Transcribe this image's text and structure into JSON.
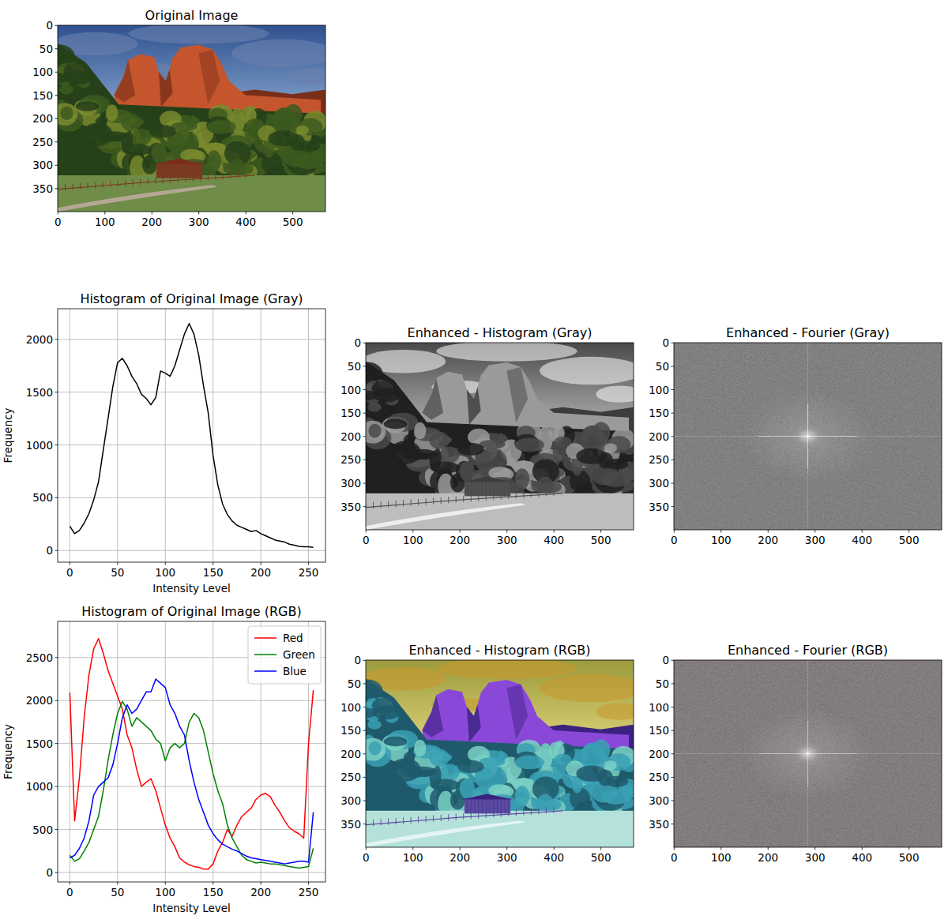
{
  "chart_data": [
    {
      "type": "image",
      "title": "Original Image",
      "xlim": [
        -0.5,
        569.5
      ],
      "ylim": [
        399.5,
        -0.5
      ],
      "xticks": [
        0,
        100,
        200,
        300,
        400,
        500
      ],
      "yticks": [
        0,
        50,
        100,
        150,
        200,
        250,
        300,
        350
      ]
    },
    {
      "type": "line",
      "title": "Histogram of Original Image (Gray)",
      "x_label": "Intensity Level",
      "y_label": "Frequency",
      "grid": true,
      "color": "black",
      "xlim": [
        -12.75,
        267.75
      ],
      "ylim": [
        -110,
        2290
      ],
      "xticks": [
        0,
        50,
        100,
        150,
        200,
        250
      ],
      "yticks": [
        0,
        500,
        1000,
        1500,
        2000
      ],
      "x": [
        0,
        5,
        10,
        15,
        20,
        25,
        30,
        35,
        40,
        45,
        50,
        55,
        60,
        65,
        70,
        75,
        80,
        85,
        90,
        95,
        100,
        105,
        110,
        115,
        120,
        125,
        130,
        135,
        140,
        145,
        150,
        155,
        160,
        165,
        170,
        175,
        180,
        185,
        190,
        195,
        200,
        205,
        210,
        215,
        220,
        225,
        230,
        235,
        240,
        245,
        250,
        255
      ],
      "values": [
        230,
        160,
        190,
        260,
        350,
        480,
        650,
        950,
        1250,
        1550,
        1780,
        1820,
        1750,
        1650,
        1580,
        1480,
        1440,
        1380,
        1450,
        1700,
        1680,
        1650,
        1750,
        1900,
        2050,
        2150,
        2050,
        1850,
        1560,
        1300,
        900,
        620,
        440,
        340,
        280,
        240,
        220,
        200,
        180,
        190,
        160,
        140,
        120,
        100,
        90,
        80,
        60,
        50,
        40,
        35,
        35,
        30
      ]
    },
    {
      "type": "image",
      "title": "Enhanced - Histogram (Gray)",
      "xlim": [
        -0.5,
        569.5
      ],
      "ylim": [
        399.5,
        -0.5
      ],
      "xticks": [
        0,
        100,
        200,
        300,
        400,
        500
      ],
      "yticks": [
        0,
        50,
        100,
        150,
        200,
        250,
        300,
        350
      ]
    },
    {
      "type": "image",
      "title": "Enhanced - Fourier (Gray)",
      "xlim": [
        -0.5,
        569.5
      ],
      "ylim": [
        399.5,
        -0.5
      ],
      "xticks": [
        0,
        100,
        200,
        300,
        400,
        500
      ],
      "yticks": [
        0,
        50,
        100,
        150,
        200,
        250,
        300,
        350
      ]
    },
    {
      "type": "line",
      "title": "Histogram of Original Image (RGB)",
      "x_label": "Intensity Level",
      "y_label": "Frequency",
      "grid": true,
      "legend": "upper right",
      "xlim": [
        -12.75,
        267.75
      ],
      "ylim": [
        -110,
        2920
      ],
      "xticks": [
        0,
        50,
        100,
        150,
        200,
        250
      ],
      "yticks": [
        0,
        500,
        1000,
        1500,
        2000,
        2500
      ],
      "x": [
        0,
        5,
        10,
        15,
        20,
        25,
        30,
        35,
        40,
        45,
        50,
        55,
        60,
        65,
        70,
        75,
        80,
        85,
        90,
        95,
        100,
        105,
        110,
        115,
        120,
        125,
        130,
        135,
        140,
        145,
        150,
        155,
        160,
        165,
        170,
        175,
        180,
        185,
        190,
        195,
        200,
        205,
        210,
        215,
        220,
        225,
        230,
        235,
        240,
        245,
        250,
        255
      ],
      "series": [
        {
          "name": "Red",
          "color": "red",
          "values": [
            2090,
            600,
            1100,
            1800,
            2300,
            2600,
            2720,
            2550,
            2350,
            2200,
            2050,
            1900,
            1600,
            1450,
            1200,
            1000,
            1050,
            1090,
            950,
            750,
            550,
            400,
            300,
            170,
            120,
            90,
            70,
            60,
            40,
            40,
            100,
            250,
            350,
            500,
            420,
            550,
            650,
            700,
            750,
            850,
            900,
            920,
            880,
            780,
            700,
            600,
            520,
            480,
            450,
            400,
            1500,
            2120
          ]
        },
        {
          "name": "Green",
          "color": "green",
          "values": [
            200,
            130,
            160,
            250,
            350,
            500,
            650,
            950,
            1300,
            1600,
            1850,
            1990,
            1900,
            1700,
            1800,
            1750,
            1700,
            1650,
            1550,
            1500,
            1300,
            1450,
            1500,
            1450,
            1500,
            1750,
            1850,
            1800,
            1650,
            1400,
            1150,
            950,
            800,
            550,
            400,
            300,
            200,
            150,
            130,
            110,
            120,
            110,
            100,
            100,
            90,
            80,
            70,
            60,
            50,
            60,
            70,
            280
          ]
        },
        {
          "name": "Blue",
          "color": "blue",
          "values": [
            170,
            200,
            280,
            400,
            600,
            900,
            1000,
            1050,
            1100,
            1250,
            1500,
            1800,
            1950,
            1850,
            1900,
            2000,
            2100,
            2100,
            2250,
            2200,
            2150,
            1950,
            1850,
            1700,
            1600,
            1300,
            1050,
            850,
            700,
            550,
            450,
            380,
            330,
            300,
            270,
            250,
            220,
            190,
            170,
            160,
            150,
            140,
            130,
            120,
            110,
            100,
            110,
            120,
            130,
            130,
            120,
            700
          ]
        }
      ]
    },
    {
      "type": "image",
      "title": "Enhanced - Histogram (RGB)",
      "xlim": [
        -0.5,
        569.5
      ],
      "ylim": [
        399.5,
        -0.5
      ],
      "xticks": [
        0,
        100,
        200,
        300,
        400,
        500
      ],
      "yticks": [
        0,
        50,
        100,
        150,
        200,
        250,
        300,
        350
      ]
    },
    {
      "type": "image",
      "title": "Enhanced - Fourier (RGB)",
      "xlim": [
        -0.5,
        569.5
      ],
      "ylim": [
        399.5,
        -0.5
      ],
      "xticks": [
        0,
        100,
        200,
        300,
        400,
        500
      ],
      "yticks": [
        0,
        50,
        100,
        150,
        200,
        250,
        300,
        350
      ]
    }
  ]
}
